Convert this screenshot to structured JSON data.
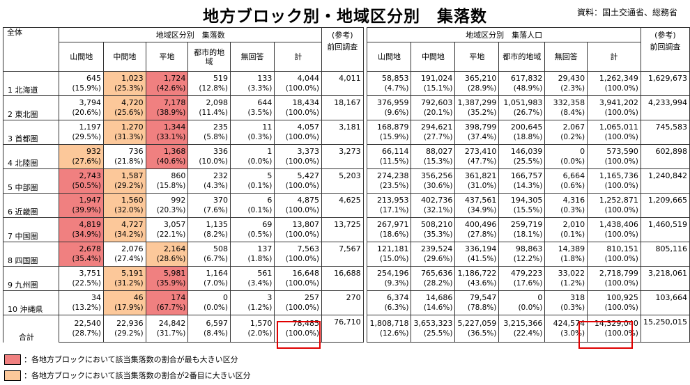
{
  "title": "地方ブロック別・地域区分別　集落数",
  "source": "資料：国土交通省、総務省",
  "headers": {
    "corner": "全体",
    "group1": "地域区分別　集落数",
    "group2": "地域区分別　集落人口",
    "ref": "(参考)",
    "prev": "前回調査",
    "cols": [
      "山間地",
      "中間地",
      "平地",
      "都市的地域",
      "無回答",
      "計"
    ]
  },
  "colors": {
    "max_share": "#f08080",
    "second_share": "#fcc89a",
    "highlight_border": "#e00000"
  },
  "rows": [
    {
      "label": "1 北海道",
      "counts": [
        "645",
        "1,023",
        "1,724",
        "519",
        "133",
        "4,044"
      ],
      "count_pct": [
        "(15.9%)",
        "(25.3%)",
        "(42.6%)",
        "(12.8%)",
        "(3.3%)",
        "(100.0%)"
      ],
      "prev_count": "4,011",
      "pops": [
        "58,853",
        "191,024",
        "365,210",
        "617,832",
        "29,430",
        "1,262,349"
      ],
      "pop_pct": [
        "(4.7%)",
        "(15.1%)",
        "(28.9%)",
        "(48.9%)",
        "(2.3%)",
        "(100.0%)"
      ],
      "prev_pop": "1,629,673",
      "hl": [
        null,
        "org",
        "red",
        null,
        null,
        null
      ]
    },
    {
      "label": "2 東北圏",
      "counts": [
        "3,794",
        "4,720",
        "7,178",
        "2,098",
        "644",
        "18,434"
      ],
      "count_pct": [
        "(20.6%)",
        "(25.6%)",
        "(38.9%)",
        "(11.4%)",
        "(3.5%)",
        "(100.0%)"
      ],
      "prev_count": "18,167",
      "pops": [
        "376,959",
        "792,603",
        "1,387,299",
        "1,051,983",
        "332,358",
        "3,941,202"
      ],
      "pop_pct": [
        "(9.6%)",
        "(20.1%)",
        "(35.2%)",
        "(26.7%)",
        "(8.4%)",
        "(100.0%)"
      ],
      "prev_pop": "4,233,994",
      "hl": [
        null,
        "org",
        "red",
        null,
        null,
        null
      ]
    },
    {
      "label": "3 首都圏",
      "counts": [
        "1,197",
        "1,270",
        "1,344",
        "235",
        "11",
        "4,057"
      ],
      "count_pct": [
        "(29.5%)",
        "(31.3%)",
        "(33.1%)",
        "(5.8%)",
        "(0.3%)",
        "(100.0%)"
      ],
      "prev_count": "3,181",
      "pops": [
        "168,879",
        "294,621",
        "398,799",
        "200,645",
        "2,067",
        "1,065,011"
      ],
      "pop_pct": [
        "(15.9%)",
        "(27.7%)",
        "(37.4%)",
        "(18.8%)",
        "(0.2%)",
        "(100.0%)"
      ],
      "prev_pop": "745,583",
      "hl": [
        null,
        "org",
        "red",
        null,
        null,
        null
      ]
    },
    {
      "label": "4 北陸圏",
      "counts": [
        "932",
        "736",
        "1,368",
        "336",
        "1",
        "3,373"
      ],
      "count_pct": [
        "(27.6%)",
        "(21.8%)",
        "(40.6%)",
        "(10.0%)",
        "(0.0%)",
        "(100.0%)"
      ],
      "prev_count": "3,273",
      "pops": [
        "66,114",
        "88,027",
        "273,410",
        "146,039",
        "0",
        "573,590"
      ],
      "pop_pct": [
        "(11.5%)",
        "(15.3%)",
        "(47.7%)",
        "(25.5%)",
        "(0.0%)",
        "(100.0%)"
      ],
      "prev_pop": "602,898",
      "hl": [
        "org",
        null,
        "red",
        null,
        null,
        null
      ]
    },
    {
      "label": "5 中部圏",
      "counts": [
        "2,743",
        "1,587",
        "860",
        "232",
        "5",
        "5,427"
      ],
      "count_pct": [
        "(50.5%)",
        "(29.2%)",
        "(15.8%)",
        "(4.3%)",
        "(0.1%)",
        "(100.0%)"
      ],
      "prev_count": "5,203",
      "pops": [
        "274,238",
        "356,256",
        "361,821",
        "166,757",
        "6,664",
        "1,165,736"
      ],
      "pop_pct": [
        "(23.5%)",
        "(30.6%)",
        "(31.0%)",
        "(14.3%)",
        "(0.6%)",
        "(100.0%)"
      ],
      "prev_pop": "1,240,842",
      "hl": [
        "red",
        "org",
        null,
        null,
        null,
        null
      ]
    },
    {
      "label": "6 近畿圏",
      "counts": [
        "1,947",
        "1,560",
        "992",
        "370",
        "6",
        "4,875"
      ],
      "count_pct": [
        "(39.9%)",
        "(32.0%)",
        "(20.3%)",
        "(7.6%)",
        "(0.1%)",
        "(100.0%)"
      ],
      "prev_count": "4,625",
      "pops": [
        "213,953",
        "402,736",
        "437,561",
        "194,305",
        "4,316",
        "1,252,871"
      ],
      "pop_pct": [
        "(17.1%)",
        "(32.1%)",
        "(34.9%)",
        "(15.5%)",
        "(0.3%)",
        "(100.0%)"
      ],
      "prev_pop": "1,209,665",
      "hl": [
        "red",
        "org",
        null,
        null,
        null,
        null
      ]
    },
    {
      "label": "7 中国圏",
      "counts": [
        "4,819",
        "4,727",
        "3,057",
        "1,135",
        "69",
        "13,807"
      ],
      "count_pct": [
        "(34.9%)",
        "(34.2%)",
        "(22.1%)",
        "(8.2%)",
        "(0.5%)",
        "(100.0%)"
      ],
      "prev_count": "13,725",
      "pops": [
        "267,971",
        "508,210",
        "400,496",
        "259,719",
        "2,010",
        "1,438,406"
      ],
      "pop_pct": [
        "(18.6%)",
        "(35.3%)",
        "(27.8%)",
        "(18.1%)",
        "(0.1%)",
        "(100.0%)"
      ],
      "prev_pop": "1,460,519",
      "hl": [
        "red",
        "org",
        null,
        null,
        null,
        null
      ]
    },
    {
      "label": "8 四国圏",
      "counts": [
        "2,678",
        "2,076",
        "2,164",
        "508",
        "137",
        "7,563"
      ],
      "count_pct": [
        "(35.4%)",
        "(27.4%)",
        "(28.6%)",
        "(6.7%)",
        "(1.8%)",
        "(100.0%)"
      ],
      "prev_count": "7,567",
      "pops": [
        "121,181",
        "239,524",
        "336,194",
        "98,863",
        "14,389",
        "810,151"
      ],
      "pop_pct": [
        "(15.0%)",
        "(29.6%)",
        "(41.5%)",
        "(12.2%)",
        "(1.8%)",
        "(100.0%)"
      ],
      "prev_pop": "805,116",
      "hl": [
        "red",
        null,
        "org",
        null,
        null,
        null
      ]
    },
    {
      "label": "9 九州圏",
      "counts": [
        "3,751",
        "5,191",
        "5,981",
        "1,164",
        "561",
        "16,648"
      ],
      "count_pct": [
        "(22.5%)",
        "(31.2%)",
        "(35.9%)",
        "(7.0%)",
        "(3.4%)",
        "(100.0%)"
      ],
      "prev_count": "16,688",
      "pops": [
        "254,196",
        "765,636",
        "1,186,722",
        "479,223",
        "33,022",
        "2,718,799"
      ],
      "pop_pct": [
        "(9.3%)",
        "(28.2%)",
        "(43.6%)",
        "(17.6%)",
        "(1.2%)",
        "(100.0%)"
      ],
      "prev_pop": "3,218,061",
      "hl": [
        null,
        "org",
        "red",
        null,
        null,
        null
      ]
    },
    {
      "label": "10 沖縄県",
      "counts": [
        "34",
        "46",
        "174",
        "0",
        "3",
        "257"
      ],
      "count_pct": [
        "(13.2%)",
        "(17.9%)",
        "(67.7%)",
        "(0.0%)",
        "(1.2%)",
        "(100.0%)"
      ],
      "prev_count": "270",
      "pops": [
        "6,374",
        "14,686",
        "79,547",
        "0",
        "318",
        "100,925"
      ],
      "pop_pct": [
        "(6.3%)",
        "(14.6%)",
        "(78.8%)",
        "(0.0%)",
        "(0.3%)",
        "(100.0%)"
      ],
      "prev_pop": "103,664",
      "hl": [
        null,
        "org",
        "red",
        null,
        null,
        null
      ]
    },
    {
      "label": "合計",
      "counts": [
        "22,540",
        "22,936",
        "24,842",
        "6,597",
        "1,570",
        "78,485"
      ],
      "count_pct": [
        "(28.7%)",
        "(29.2%)",
        "(31.7%)",
        "(8.4%)",
        "(2.0%)",
        "(100.0%)"
      ],
      "prev_count": "76,710",
      "pops": [
        "1,808,718",
        "3,653,323",
        "5,227,059",
        "3,215,366",
        "424,574",
        "14,329,040"
      ],
      "pop_pct": [
        "(12.6%)",
        "(25.5%)",
        "(36.5%)",
        "(22.4%)",
        "(3.0%)",
        "(100.0%)"
      ],
      "prev_pop": "15,250,015",
      "hl": [
        null,
        null,
        null,
        null,
        null,
        null
      ]
    }
  ],
  "legend": {
    "red": "：各地方ブロックにおいて該当集落数の割合が最も大きい区分",
    "orange": "：各地方ブロックにおいて該当集落数の割合が2番目に大きい区分"
  }
}
